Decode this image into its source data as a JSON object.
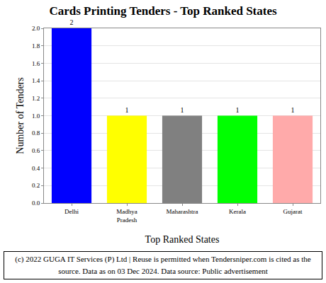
{
  "chart_data": {
    "type": "bar",
    "title": "Cards Printing Tenders - Top Ranked States",
    "x_label": "Top Ranked States",
    "y_label": "Number of Tenders",
    "categories": [
      "Delhi",
      "Madhya Pradesh",
      "Maharashtra",
      "Kerala",
      "Gujarat"
    ],
    "values": [
      2,
      1,
      1,
      1,
      1
    ],
    "colors": [
      "#0000ff",
      "#ffff00",
      "#808080",
      "#00ff00",
      "#ffaaaa"
    ],
    "ylim": [
      0,
      2
    ],
    "yticks": [
      {
        "value": 0,
        "label": "0.0"
      },
      0.2,
      0.4,
      0.6,
      0.8,
      {
        "value": 1,
        "label": "1.0"
      },
      1.2,
      1.4,
      1.6,
      1.8,
      {
        "value": 2,
        "label": "2.0"
      }
    ],
    "grid": true,
    "data_labels": true,
    "annotations": [
      "(c) 2022 GUGA IT Services (P) Ltd | Reuse is permitted when Tendersniper.com is cited as the source. Data as on 03 Dec 2024. Data source: Public advertisement"
    ]
  }
}
